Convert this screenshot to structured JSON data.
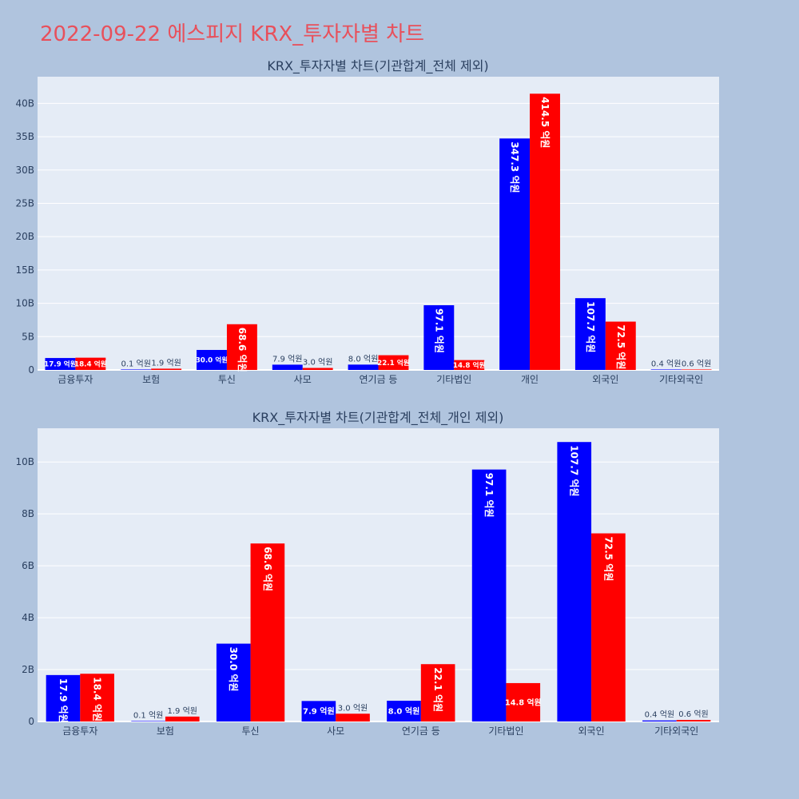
{
  "page_title": "2022-09-22 에스피지 KRX_투자자별 차트",
  "colors": {
    "buy": "#0000ff",
    "sell": "#ff0000",
    "plot_bg": "#e5ecf6",
    "paper_bg": "#b0c4de",
    "title": "#e8505b"
  },
  "chart_data": [
    {
      "type": "bar",
      "title": "KRX_투자자별 차트(기관합계_전체 제외)",
      "categories": [
        "금융투자",
        "보험",
        "투신",
        "사모",
        "연기금 등",
        "기타법인",
        "개인",
        "외국인",
        "기타외국인"
      ],
      "ylim": [
        0,
        44
      ],
      "y_ticks": [
        0,
        5,
        10,
        15,
        20,
        25,
        30,
        35,
        40
      ],
      "y_tick_labels": [
        "0",
        "5B",
        "10B",
        "15B",
        "20B",
        "25B",
        "30B",
        "35B",
        "40B"
      ],
      "grid": true,
      "series": [
        {
          "color": "#0000ff",
          "values": [
            1.79,
            0.01,
            3.0,
            0.79,
            0.8,
            9.71,
            34.73,
            10.77,
            0.04
          ],
          "labels": [
            "17.9 억원",
            "0.1 억원",
            "30.0 억원",
            "7.9 억원",
            "8.0 억원",
            "97.1 억원",
            "347.3 억원",
            "107.7 억원",
            "0.4 억원"
          ]
        },
        {
          "color": "#ff0000",
          "values": [
            1.84,
            0.19,
            6.86,
            0.3,
            2.21,
            1.48,
            41.45,
            7.25,
            0.06
          ],
          "labels": [
            "18.4 억원",
            "1.9 억원",
            "68.6 억원",
            "3.0 억원",
            "22.1 억원",
            "14.8 억원",
            "414.5 억원",
            "72.5 억원",
            "0.6 억원"
          ]
        }
      ]
    },
    {
      "type": "bar",
      "title": "KRX_투자자별 차트(기관합계_전체_개인 제외)",
      "categories": [
        "금융투자",
        "보험",
        "투신",
        "사모",
        "연기금 등",
        "기타법인",
        "외국인",
        "기타외국인"
      ],
      "ylim": [
        0,
        11.3
      ],
      "y_ticks": [
        0,
        2,
        4,
        6,
        8,
        10
      ],
      "y_tick_labels": [
        "0",
        "2B",
        "4B",
        "6B",
        "8B",
        "10B"
      ],
      "grid": true,
      "series": [
        {
          "color": "#0000ff",
          "values": [
            1.79,
            0.01,
            3.0,
            0.79,
            0.8,
            9.71,
            10.77,
            0.04
          ],
          "labels": [
            "17.9 억원",
            "0.1 억원",
            "30.0 억원",
            "7.9 억원",
            "8.0 억원",
            "97.1 억원",
            "107.7 억원",
            "0.4 억원"
          ]
        },
        {
          "color": "#ff0000",
          "values": [
            1.84,
            0.19,
            6.86,
            0.3,
            2.21,
            1.48,
            7.25,
            0.06
          ],
          "labels": [
            "18.4 억원",
            "1.9 억원",
            "68.6 억원",
            "3.0 억원",
            "22.1 억원",
            "14.8 억원",
            "72.5 억원",
            "0.6 억원"
          ]
        }
      ]
    }
  ]
}
